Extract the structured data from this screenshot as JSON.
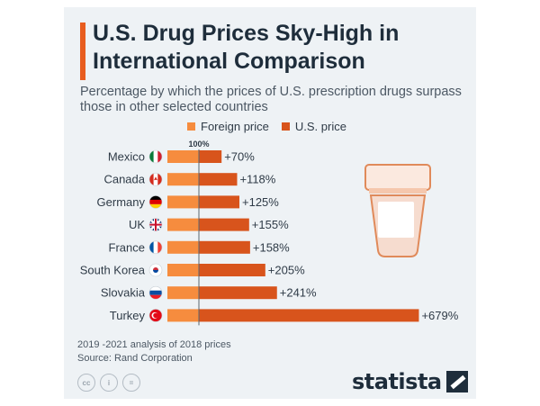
{
  "header": {
    "title": "U.S. Drug Prices Sky-High in International Comparison",
    "subtitle": "Percentage by which the prices of U.S. prescription drugs surpass those in other selected countries"
  },
  "legend": {
    "foreign": "Foreign price",
    "us": "U.S. price"
  },
  "colors": {
    "foreign": "#f68c3e",
    "us": "#d8541c",
    "accent": "#e85d1f",
    "title": "#1e2d3b"
  },
  "chart_data": {
    "type": "bar",
    "orientation": "horizontal",
    "baseline_label": "100%",
    "categories": [
      "Mexico",
      "Canada",
      "Germany",
      "UK",
      "France",
      "South Korea",
      "Slovakia",
      "Turkey"
    ],
    "flags": [
      "mexico-flag-icon",
      "canada-flag-icon",
      "germany-flag-icon",
      "uk-flag-icon",
      "france-flag-icon",
      "south-korea-flag-icon",
      "slovakia-flag-icon",
      "turkey-flag-icon"
    ],
    "values": [
      70,
      118,
      125,
      155,
      158,
      205,
      241,
      679
    ],
    "value_labels": [
      "+70%",
      "+118%",
      "+125%",
      "+155%",
      "+158%",
      "+205%",
      "+241%",
      "+679%"
    ],
    "series": [
      {
        "name": "Foreign price",
        "values": [
          100,
          100,
          100,
          100,
          100,
          100,
          100,
          100
        ]
      },
      {
        "name": "U.S. price",
        "values": [
          70,
          118,
          125,
          155,
          158,
          205,
          241,
          679
        ]
      }
    ]
  },
  "footer": {
    "note": "2019 -2021 analysis of 2018 prices",
    "source": "Source: Rand Corporation",
    "license_icons": [
      "cc",
      "i",
      "="
    ],
    "brand": "statista"
  }
}
